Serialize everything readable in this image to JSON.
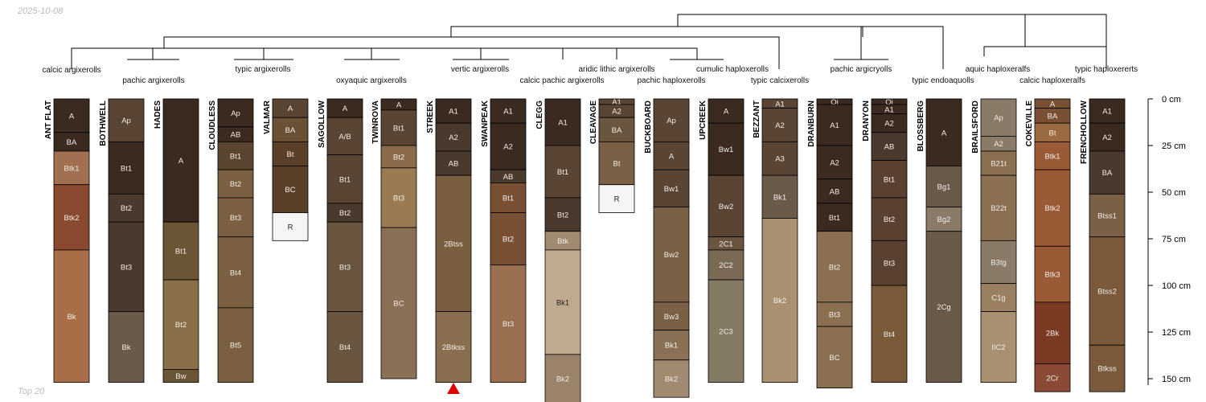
{
  "header": {
    "date": "2025-10-08"
  },
  "footer": {
    "caption": "Top 20"
  },
  "chart_data": {
    "type": "soil-profile-sketch",
    "depth_unit": "cm",
    "depth_range": [
      0,
      150
    ],
    "depth_ticks": [
      {
        "depth": 0,
        "label": "0 cm"
      },
      {
        "depth": 25,
        "label": "25 cm"
      },
      {
        "depth": 50,
        "label": "50 cm"
      },
      {
        "depth": 75,
        "label": "75 cm"
      },
      {
        "depth": 100,
        "label": "100 cm"
      },
      {
        "depth": 125,
        "label": "125 cm"
      },
      {
        "depth": 150,
        "label": "150 cm"
      }
    ],
    "taxa": [
      "calcic argixerolls",
      "pachic argixerolls",
      "typic argixerolls",
      "oxyaquic argixerolls",
      "vertic argixerolls",
      "calcic pachic argixerolls",
      "aridic lithic argixerolls",
      "pachic haploxerolls",
      "cumulic haploxerolls",
      "typic calcixerolls",
      "pachic argicryolls",
      "typic endoaquolls",
      "aquic haploxeralfs",
      "calcic haploxeralfs",
      "typic haploxererts"
    ],
    "highlight": "STREEK",
    "profiles": [
      {
        "name": "ANT FLAT",
        "horizons": [
          {
            "name": "A",
            "top": 0,
            "bottom": 18,
            "color": "#3a2a20"
          },
          {
            "name": "BA",
            "top": 18,
            "bottom": 28,
            "color": "#3a2a20"
          },
          {
            "name": "Btk1",
            "top": 28,
            "bottom": 46,
            "color": "#a07050"
          },
          {
            "name": "Btk2",
            "top": 46,
            "bottom": 81,
            "color": "#8a4a30"
          },
          {
            "name": "Bk",
            "top": 81,
            "bottom": 152,
            "color": "#a86e48"
          }
        ]
      },
      {
        "name": "BOTHWELL",
        "horizons": [
          {
            "name": "Ap",
            "top": 0,
            "bottom": 23,
            "color": "#5a4535"
          },
          {
            "name": "Bt1",
            "top": 23,
            "bottom": 51,
            "color": "#3a2a20"
          },
          {
            "name": "Bt2",
            "top": 51,
            "bottom": 66,
            "color": "#4a3a2e"
          },
          {
            "name": "Bt3",
            "top": 66,
            "bottom": 114,
            "color": "#4a3a2e"
          },
          {
            "name": "Bk",
            "top": 114,
            "bottom": 152,
            "color": "#6a5a4a"
          }
        ]
      },
      {
        "name": "HADES",
        "horizons": [
          {
            "name": "A",
            "top": 0,
            "bottom": 66,
            "color": "#3a2a20"
          },
          {
            "name": "Bt1",
            "top": 66,
            "bottom": 97,
            "color": "#6a5535"
          },
          {
            "name": "Bt2",
            "top": 97,
            "bottom": 145,
            "color": "#8a7048"
          },
          {
            "name": "Bw",
            "top": 145,
            "bottom": 152,
            "color": "#6a5535"
          }
        ]
      },
      {
        "name": "CLOUDLESS",
        "horizons": [
          {
            "name": "Ap",
            "top": 0,
            "bottom": 15,
            "color": "#3a2a20"
          },
          {
            "name": "AB",
            "top": 15,
            "bottom": 23,
            "color": "#3a2a20"
          },
          {
            "name": "Bt1",
            "top": 23,
            "bottom": 38,
            "color": "#5a4530"
          },
          {
            "name": "Bt2",
            "top": 38,
            "bottom": 53,
            "color": "#7a6040"
          },
          {
            "name": "Bt3",
            "top": 53,
            "bottom": 74,
            "color": "#7a6040"
          },
          {
            "name": "Bt4",
            "top": 74,
            "bottom": 112,
            "color": "#7a6040"
          },
          {
            "name": "Bt5",
            "top": 112,
            "bottom": 152,
            "color": "#7a6040"
          }
        ]
      },
      {
        "name": "VALMAR",
        "horizons": [
          {
            "name": "A",
            "top": 0,
            "bottom": 10,
            "color": "#5a4535"
          },
          {
            "name": "BA",
            "top": 10,
            "bottom": 23,
            "color": "#6a5035"
          },
          {
            "name": "Bt",
            "top": 23,
            "bottom": 36,
            "color": "#5a4028"
          },
          {
            "name": "BC",
            "top": 36,
            "bottom": 61,
            "color": "#5a4028"
          },
          {
            "name": "R",
            "top": 61,
            "bottom": 76,
            "color": "#f5f5f5"
          }
        ]
      },
      {
        "name": "SAGOLLOW",
        "horizons": [
          {
            "name": "A",
            "top": 0,
            "bottom": 10,
            "color": "#3a2a20"
          },
          {
            "name": "A/B",
            "top": 10,
            "bottom": 30,
            "color": "#5a4535"
          },
          {
            "name": "Bt1",
            "top": 30,
            "bottom": 56,
            "color": "#5a4535"
          },
          {
            "name": "Bt2",
            "top": 56,
            "bottom": 66,
            "color": "#4a3a2e"
          },
          {
            "name": "Bt3",
            "top": 66,
            "bottom": 114,
            "color": "#6a5540"
          },
          {
            "name": "Bt4",
            "top": 114,
            "bottom": 152,
            "color": "#6a5540"
          }
        ]
      },
      {
        "name": "TWINROVA",
        "horizons": [
          {
            "name": "A",
            "top": 0,
            "bottom": 6,
            "color": "#3a2a20"
          },
          {
            "name": "Bt1",
            "top": 6,
            "bottom": 25,
            "color": "#5a4535"
          },
          {
            "name": "Bt2",
            "top": 25,
            "bottom": 37,
            "color": "#8a6a48"
          },
          {
            "name": "Bt3",
            "top": 37,
            "bottom": 69,
            "color": "#9a7a50"
          },
          {
            "name": "BC",
            "top": 69,
            "bottom": 150,
            "color": "#8a7055"
          }
        ]
      },
      {
        "name": "STREEK",
        "horizons": [
          {
            "name": "A1",
            "top": 0,
            "bottom": 13,
            "color": "#3a2a20"
          },
          {
            "name": "A2",
            "top": 13,
            "bottom": 28,
            "color": "#4a3a2e"
          },
          {
            "name": "AB",
            "top": 28,
            "bottom": 41,
            "color": "#4a3a2e"
          },
          {
            "name": "2Btss",
            "top": 41,
            "bottom": 114,
            "color": "#7a5e40"
          },
          {
            "name": "2Btkss",
            "top": 114,
            "bottom": 152,
            "color": "#8a6e50"
          }
        ]
      },
      {
        "name": "SWANPEAK",
        "horizons": [
          {
            "name": "A1",
            "top": 0,
            "bottom": 13,
            "color": "#3a2a20"
          },
          {
            "name": "A2",
            "top": 13,
            "bottom": 38,
            "color": "#3a2a20"
          },
          {
            "name": "AB",
            "top": 38,
            "bottom": 45,
            "color": "#4a3a2e"
          },
          {
            "name": "Bt1",
            "top": 45,
            "bottom": 61,
            "color": "#7a5035"
          },
          {
            "name": "Bt2",
            "top": 61,
            "bottom": 89,
            "color": "#7a5035"
          },
          {
            "name": "Bt3",
            "top": 89,
            "bottom": 152,
            "color": "#9a7050"
          }
        ]
      },
      {
        "name": "CLEGG",
        "horizons": [
          {
            "name": "A1",
            "top": 0,
            "bottom": 25,
            "color": "#3a2a20"
          },
          {
            "name": "Bt1",
            "top": 25,
            "bottom": 53,
            "color": "#5a4535"
          },
          {
            "name": "Bt2",
            "top": 53,
            "bottom": 71,
            "color": "#4a3a2e"
          },
          {
            "name": "Btk",
            "top": 71,
            "bottom": 81,
            "color": "#a08a70"
          },
          {
            "name": "Bk1",
            "top": 81,
            "bottom": 137,
            "color": "#bfaa90"
          },
          {
            "name": "Bk2",
            "top": 137,
            "bottom": 163,
            "color": "#9a8368"
          }
        ]
      },
      {
        "name": "CLEAVAGE",
        "horizons": [
          {
            "name": "A1",
            "top": 0,
            "bottom": 3,
            "color": "#5a4535"
          },
          {
            "name": "A2",
            "top": 3,
            "bottom": 10,
            "color": "#5a4535"
          },
          {
            "name": "BA",
            "top": 10,
            "bottom": 23,
            "color": "#6a5540"
          },
          {
            "name": "Bt",
            "top": 23,
            "bottom": 46,
            "color": "#7a6045"
          },
          {
            "name": "R",
            "top": 46,
            "bottom": 61,
            "color": "#f5f5f5"
          }
        ]
      },
      {
        "name": "BUCKBOARD",
        "horizons": [
          {
            "name": "Ap",
            "top": 0,
            "bottom": 23,
            "color": "#5a4535"
          },
          {
            "name": "A",
            "top": 23,
            "bottom": 38,
            "color": "#5a4535"
          },
          {
            "name": "Bw1",
            "top": 38,
            "bottom": 58,
            "color": "#5a4535"
          },
          {
            "name": "Bw2",
            "top": 58,
            "bottom": 109,
            "color": "#7a6045"
          },
          {
            "name": "Bw3",
            "top": 109,
            "bottom": 124,
            "color": "#7a6045"
          },
          {
            "name": "Bk1",
            "top": 124,
            "bottom": 140,
            "color": "#8a7055"
          },
          {
            "name": "Bk2",
            "top": 140,
            "bottom": 160,
            "color": "#a08a70"
          }
        ]
      },
      {
        "name": "UPCREEK",
        "horizons": [
          {
            "name": "A",
            "top": 0,
            "bottom": 13,
            "color": "#3a2a20"
          },
          {
            "name": "Bw1",
            "top": 13,
            "bottom": 41,
            "color": "#3a2a20"
          },
          {
            "name": "Bw2",
            "top": 41,
            "bottom": 74,
            "color": "#5a4535"
          },
          {
            "name": "2C1",
            "top": 74,
            "bottom": 81,
            "color": "#6a5540"
          },
          {
            "name": "2C2",
            "top": 81,
            "bottom": 97,
            "color": "#7a6a55"
          },
          {
            "name": "2C3",
            "top": 97,
            "bottom": 152,
            "color": "#857a64"
          }
        ]
      },
      {
        "name": "BEZZANT",
        "horizons": [
          {
            "name": "A1",
            "top": 0,
            "bottom": 5,
            "color": "#5a4535"
          },
          {
            "name": "A2",
            "top": 5,
            "bottom": 23,
            "color": "#5a4535"
          },
          {
            "name": "A3",
            "top": 23,
            "bottom": 41,
            "color": "#5a4535"
          },
          {
            "name": "Bk1",
            "top": 41,
            "bottom": 64,
            "color": "#6a5a4a"
          },
          {
            "name": "Bk2",
            "top": 64,
            "bottom": 152,
            "color": "#a89070"
          }
        ]
      },
      {
        "name": "DRANBURN",
        "horizons": [
          {
            "name": "Oi",
            "top": 0,
            "bottom": 3,
            "color": "#3a2a20"
          },
          {
            "name": "A1",
            "top": 3,
            "bottom": 25,
            "color": "#3a2a20"
          },
          {
            "name": "A2",
            "top": 25,
            "bottom": 43,
            "color": "#3a2a20"
          },
          {
            "name": "AB",
            "top": 43,
            "bottom": 56,
            "color": "#3a2a20"
          },
          {
            "name": "Bt1",
            "top": 56,
            "bottom": 71,
            "color": "#3a2a20"
          },
          {
            "name": "Bt2",
            "top": 71,
            "bottom": 109,
            "color": "#8a7050"
          },
          {
            "name": "Bt3",
            "top": 109,
            "bottom": 122,
            "color": "#8a7050"
          },
          {
            "name": "BC",
            "top": 122,
            "bottom": 155,
            "color": "#8a7050"
          }
        ]
      },
      {
        "name": "DRANYON",
        "horizons": [
          {
            "name": "Oi",
            "top": 0,
            "bottom": 3,
            "color": "#3a2a20"
          },
          {
            "name": "A1",
            "top": 3,
            "bottom": 8,
            "color": "#3a2a20"
          },
          {
            "name": "A2",
            "top": 8,
            "bottom": 18,
            "color": "#3a2a20"
          },
          {
            "name": "AB",
            "top": 18,
            "bottom": 33,
            "color": "#4a3a2e"
          },
          {
            "name": "Bt1",
            "top": 33,
            "bottom": 53,
            "color": "#5a4030"
          },
          {
            "name": "Bt2",
            "top": 53,
            "bottom": 76,
            "color": "#5a4030"
          },
          {
            "name": "Bt3",
            "top": 76,
            "bottom": 100,
            "color": "#5a4030"
          },
          {
            "name": "Bt4",
            "top": 100,
            "bottom": 152,
            "color": "#7a5a38"
          }
        ]
      },
      {
        "name": "BLOSSBERG",
        "horizons": [
          {
            "name": "A",
            "top": 0,
            "bottom": 36,
            "color": "#3a2a20"
          },
          {
            "name": "Bg1",
            "top": 36,
            "bottom": 58,
            "color": "#6a5a4a"
          },
          {
            "name": "Bg2",
            "top": 58,
            "bottom": 71,
            "color": "#8a7a68"
          },
          {
            "name": "2Cg",
            "top": 71,
            "bottom": 152,
            "color": "#6a5a4a"
          }
        ]
      },
      {
        "name": "BRAILSFORD",
        "horizons": [
          {
            "name": "Ap",
            "top": 0,
            "bottom": 20,
            "color": "#8a7a68"
          },
          {
            "name": "A2",
            "top": 20,
            "bottom": 28,
            "color": "#8a7a68"
          },
          {
            "name": "B21t",
            "top": 28,
            "bottom": 41,
            "color": "#8a7050"
          },
          {
            "name": "B22t",
            "top": 41,
            "bottom": 76,
            "color": "#8a7050"
          },
          {
            "name": "B3tg",
            "top": 76,
            "bottom": 99,
            "color": "#8a7a68"
          },
          {
            "name": "C1g",
            "top": 99,
            "bottom": 114,
            "color": "#9a8060"
          },
          {
            "name": "IIC2",
            "top": 114,
            "bottom": 152,
            "color": "#a89070"
          }
        ]
      },
      {
        "name": "COKEVILLE",
        "horizons": [
          {
            "name": "A",
            "top": 0,
            "bottom": 5,
            "color": "#7a5035"
          },
          {
            "name": "BA",
            "top": 5,
            "bottom": 13,
            "color": "#7a5035"
          },
          {
            "name": "Bt",
            "top": 13,
            "bottom": 23,
            "color": "#9a6a40"
          },
          {
            "name": "Btk1",
            "top": 23,
            "bottom": 38,
            "color": "#9a5a35"
          },
          {
            "name": "Btk2",
            "top": 38,
            "bottom": 79,
            "color": "#9a5a35"
          },
          {
            "name": "Btk3",
            "top": 79,
            "bottom": 109,
            "color": "#9a5a35"
          },
          {
            "name": "2Bk",
            "top": 109,
            "bottom": 142,
            "color": "#7a3a22"
          },
          {
            "name": "2Cr",
            "top": 142,
            "bottom": 157,
            "color": "#8a4a35"
          }
        ]
      },
      {
        "name": "FRENCHOLLOW",
        "horizons": [
          {
            "name": "A1",
            "top": 0,
            "bottom": 13,
            "color": "#3a2a20"
          },
          {
            "name": "A2",
            "top": 13,
            "bottom": 28,
            "color": "#3a2a20"
          },
          {
            "name": "BA",
            "top": 28,
            "bottom": 51,
            "color": "#4a3a2e"
          },
          {
            "name": "Btss1",
            "top": 51,
            "bottom": 74,
            "color": "#7a6045"
          },
          {
            "name": "Btss2",
            "top": 74,
            "bottom": 132,
            "color": "#7a5a3a"
          },
          {
            "name": "Btkss",
            "top": 132,
            "bottom": 157,
            "color": "#7a5a3a"
          }
        ]
      }
    ]
  }
}
